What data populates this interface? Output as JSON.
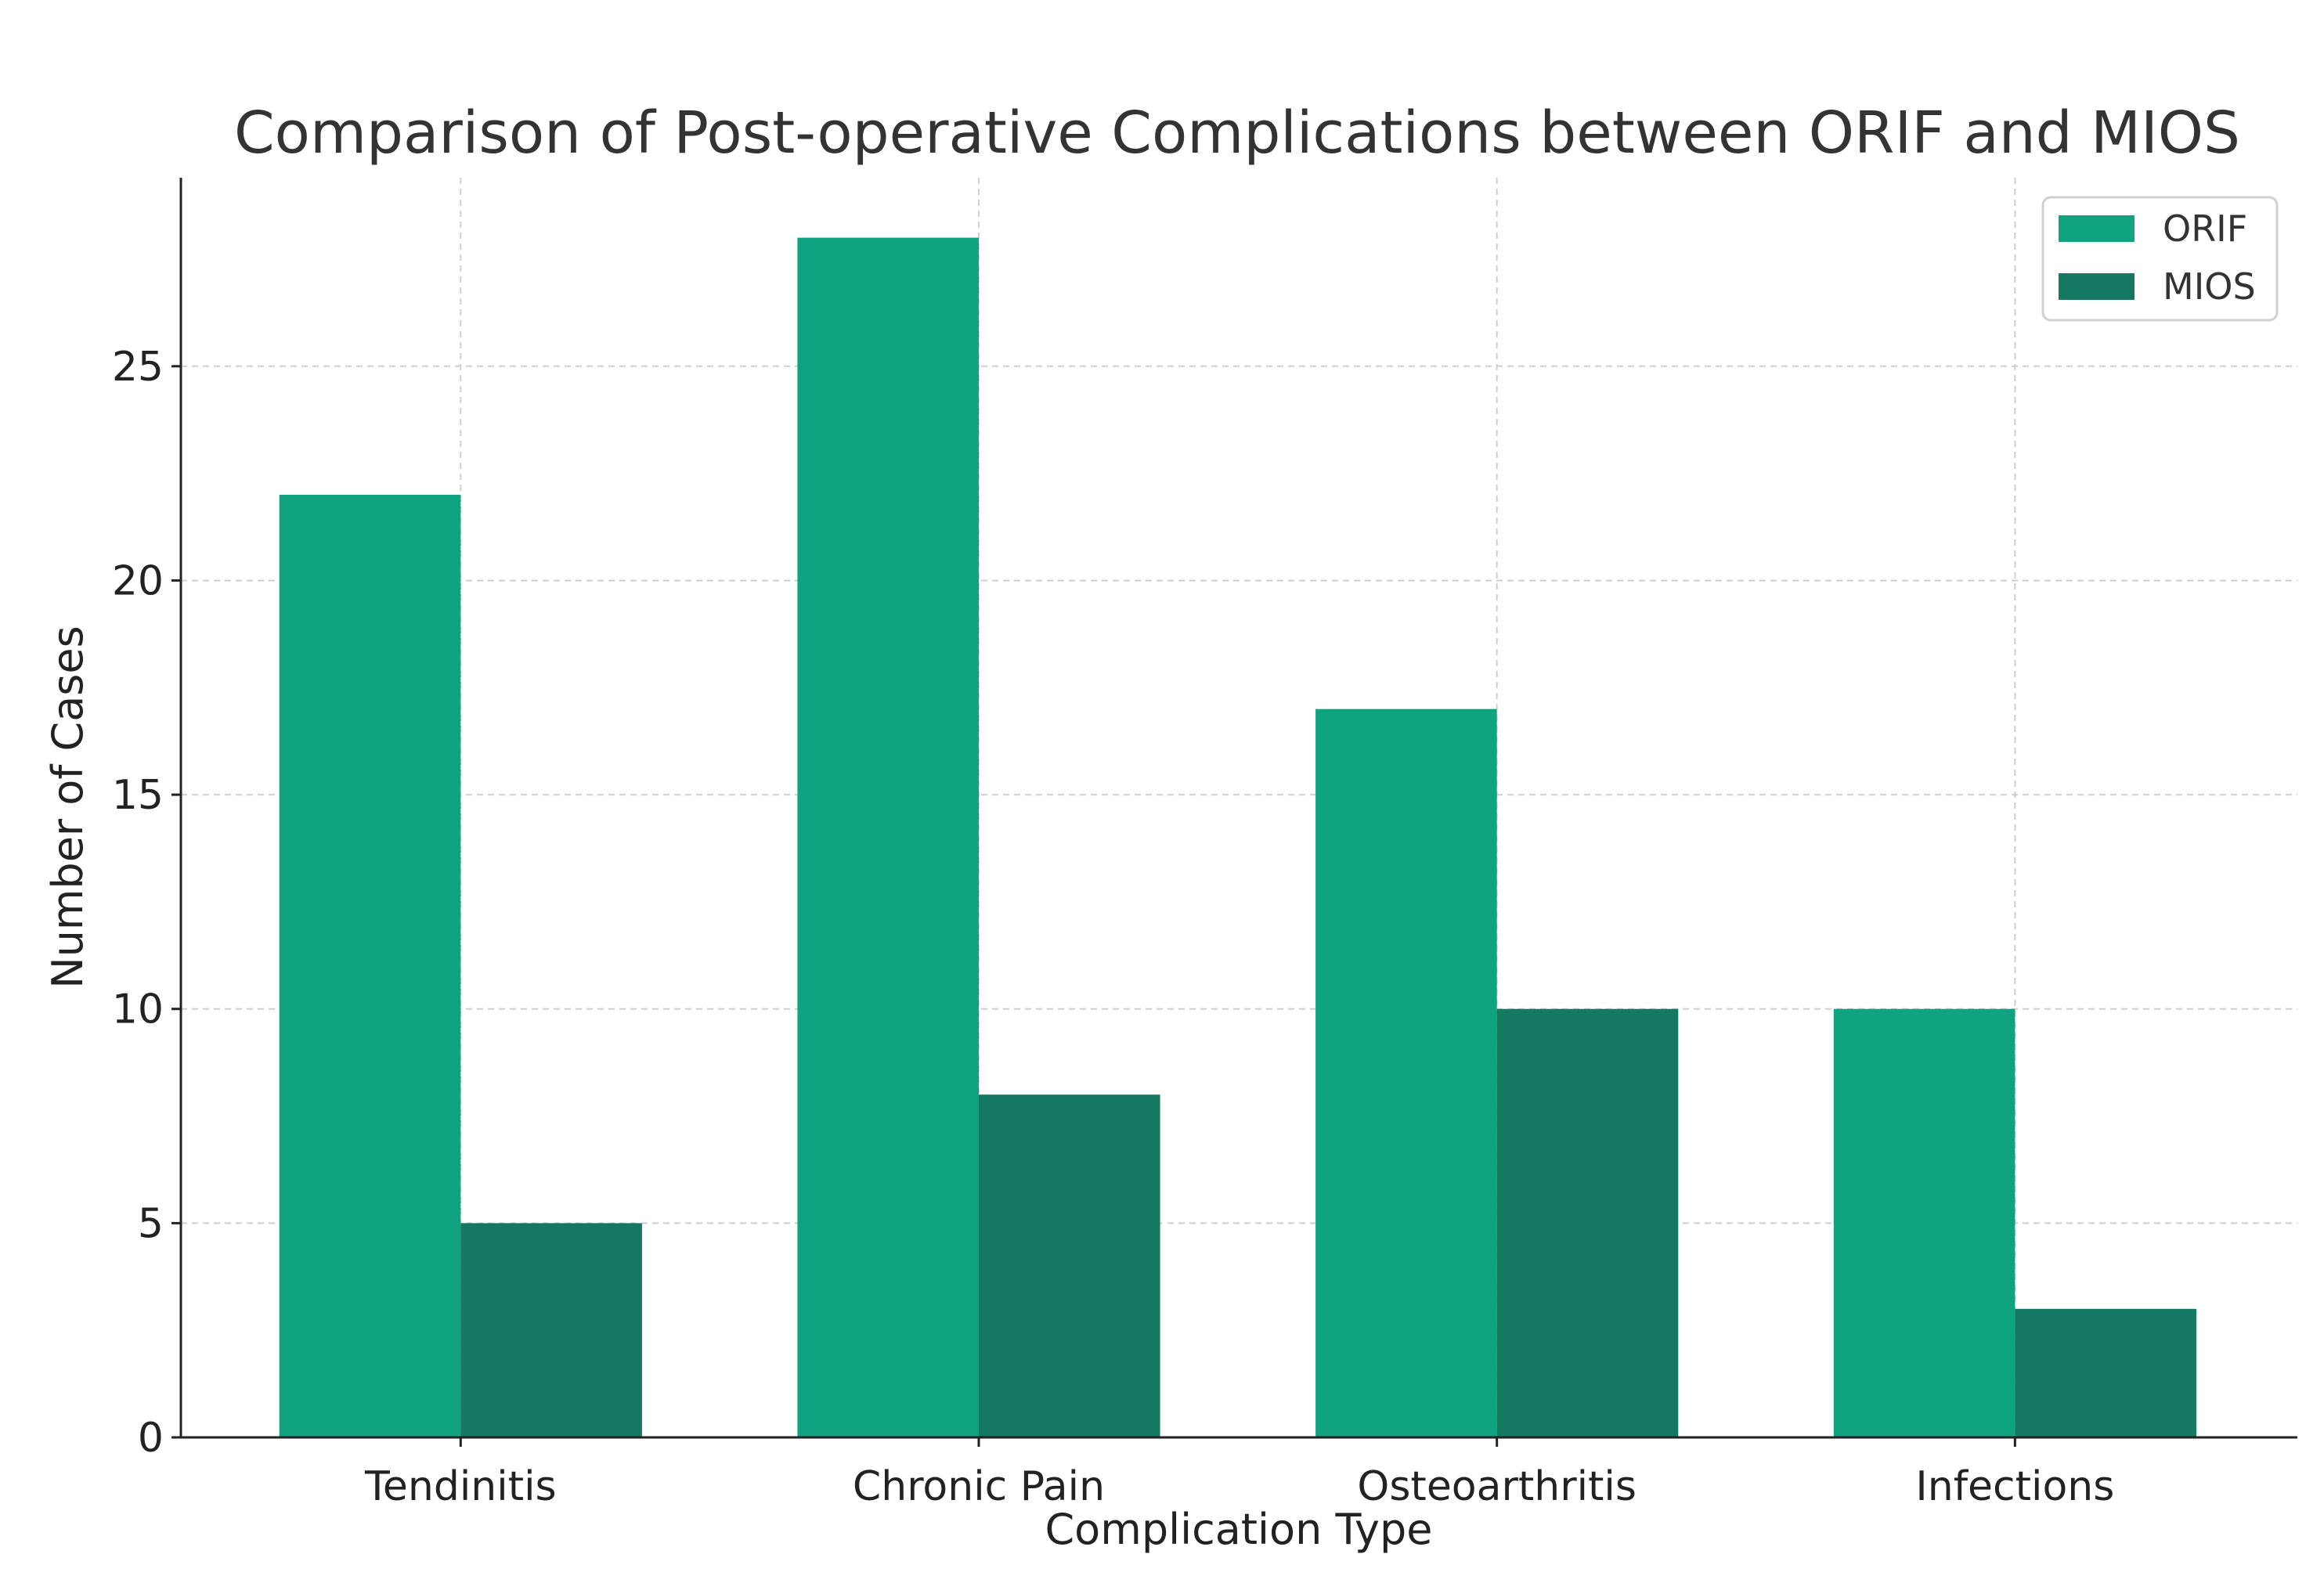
{
  "chart_data": {
    "type": "bar",
    "title": "Comparison of Post-operative Complications between ORIF and MIOS",
    "xlabel": "Complication Type",
    "ylabel": "Number of Cases",
    "categories": [
      "Tendinitis",
      "Chronic Pain",
      "Osteoarthritis",
      "Infections"
    ],
    "series": [
      {
        "name": "ORIF",
        "values": [
          22,
          28,
          17,
          10
        ],
        "color": "#10a37f"
      },
      {
        "name": "MIOS",
        "values": [
          5,
          8,
          10,
          3
        ],
        "color": "#147960"
      }
    ],
    "ylim": [
      0,
      29.4
    ],
    "yticks": [
      0,
      5,
      10,
      15,
      20,
      25
    ],
    "grid": true,
    "legend": "top-right"
  }
}
